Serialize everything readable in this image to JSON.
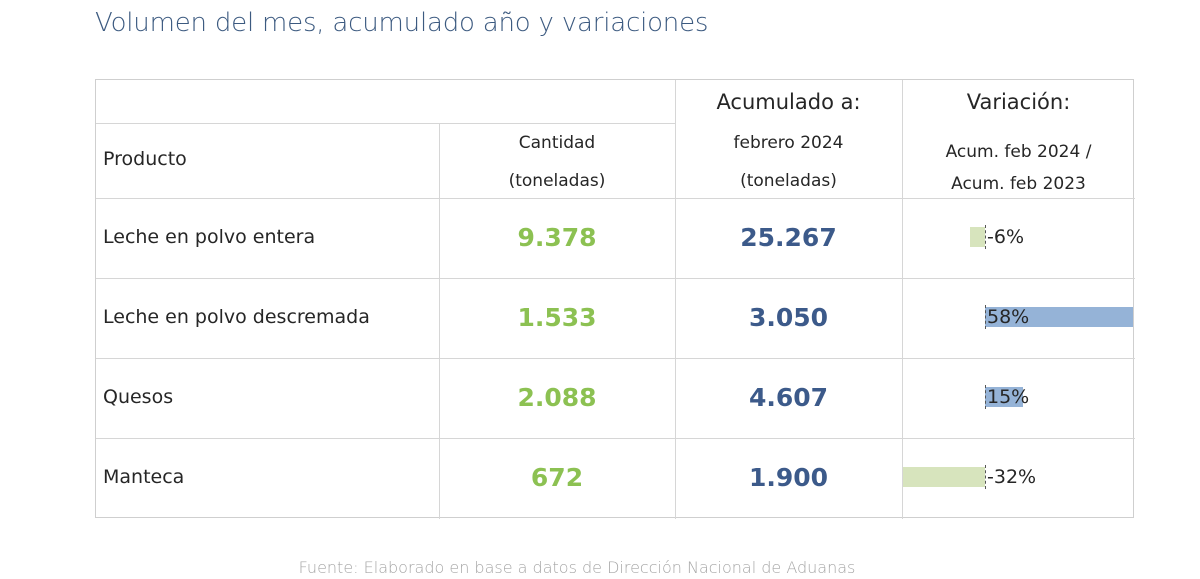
{
  "title": "Volumen del mes, acumulado año y variaciones",
  "header": {
    "producto": "Producto",
    "cantidad": "Cantidad",
    "cantidad_unit": "(toneladas)",
    "acumulado_title": "Acumulado a:",
    "acumulado_period": "febrero 2024",
    "acumulado_unit": "(toneladas)",
    "variacion_title": "Variación:",
    "variacion_line1": "Acum. feb 2024 /",
    "variacion_line2": "Acum. feb 2023"
  },
  "rows": [
    {
      "producto": "Leche en polvo entera",
      "cantidad": "9.378",
      "acumulado": "25.267",
      "variacion": "-6%",
      "variacion_value": -6
    },
    {
      "producto": "Leche en polvo descremada",
      "cantidad": "1.533",
      "acumulado": "3.050",
      "variacion": "58%",
      "variacion_value": 58
    },
    {
      "producto": "Quesos",
      "cantidad": "2.088",
      "acumulado": "4.607",
      "variacion": "15%",
      "variacion_value": 15
    },
    {
      "producto": "Manteca",
      "cantidad": "672",
      "acumulado": "1.900",
      "variacion": "-32%",
      "variacion_value": -32
    }
  ],
  "colors": {
    "cantidad": "#8cc152",
    "acumulado": "#3c5a8a",
    "bar_positive": "#95b3d7",
    "bar_negative": "#d7e4bd"
  },
  "source": "Fuente: Elaborado en base a datos de Dirección Nacional de Aduanas"
}
